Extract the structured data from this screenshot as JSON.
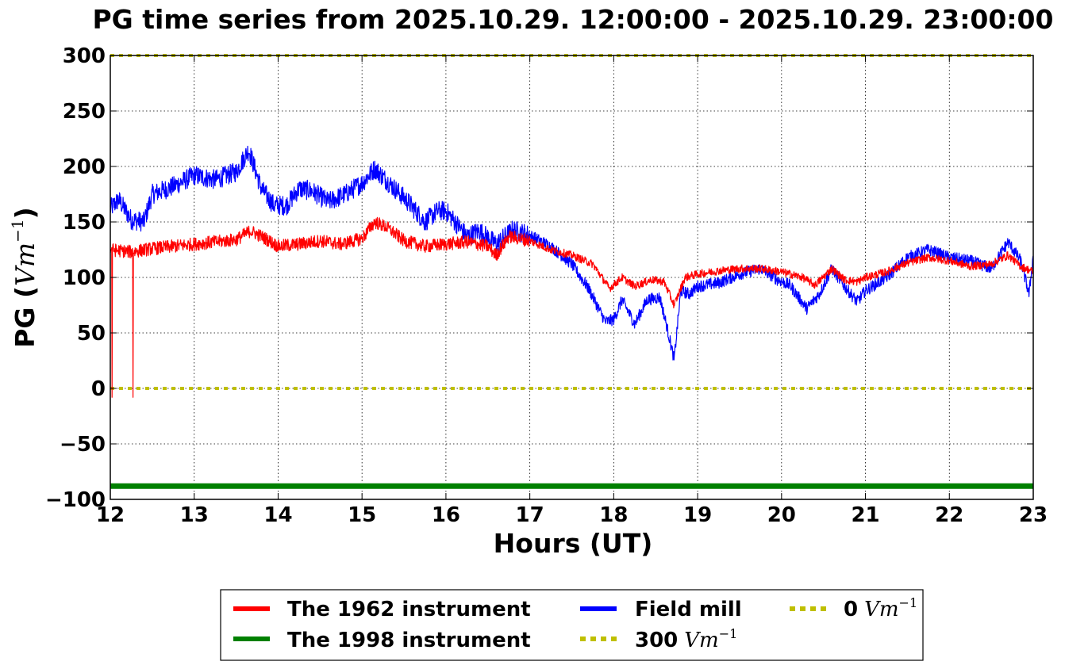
{
  "chart_data": {
    "type": "line",
    "title": "PG time series from 2025.10.29. 12:00:00 - 2025.10.29. 23:00:00",
    "xlabel": "Hours (UT)",
    "ylabel_text": "PG (",
    "ylabel_unit": "Vm",
    "ylabel_exp": "−1",
    "ylabel_close": ")",
    "xlim": [
      12,
      23
    ],
    "ylim": [
      -100,
      300
    ],
    "grid": true,
    "x_ticks": [
      12,
      13,
      14,
      15,
      16,
      17,
      18,
      19,
      20,
      21,
      22,
      23
    ],
    "y_ticks": [
      -100,
      -50,
      0,
      50,
      100,
      150,
      200,
      250,
      300
    ],
    "y_tick_labels": [
      "−100",
      "−50",
      "0",
      "50",
      "100",
      "150",
      "200",
      "250",
      "300"
    ],
    "legend_position": "below-center",
    "series": [
      {
        "name": "The 1962 instrument",
        "color": "#ff0000",
        "style": "solid",
        "x": [
          12.0,
          12.25,
          12.5,
          12.75,
          13.0,
          13.25,
          13.5,
          13.67,
          13.85,
          14.0,
          14.25,
          14.5,
          14.75,
          15.0,
          15.15,
          15.3,
          15.5,
          15.75,
          16.0,
          16.25,
          16.5,
          16.6,
          16.75,
          17.0,
          17.25,
          17.5,
          17.75,
          17.95,
          18.1,
          18.25,
          18.45,
          18.6,
          18.72,
          18.85,
          19.0,
          19.25,
          19.5,
          19.75,
          20.0,
          20.25,
          20.4,
          20.6,
          20.75,
          20.9,
          21.0,
          21.25,
          21.5,
          21.75,
          22.0,
          22.25,
          22.5,
          22.7,
          22.85,
          23.0
        ],
        "y": [
          125,
          123,
          126,
          128,
          130,
          132,
          134,
          142,
          135,
          128,
          130,
          133,
          130,
          135,
          150,
          145,
          133,
          128,
          130,
          132,
          128,
          120,
          137,
          133,
          125,
          120,
          112,
          90,
          100,
          92,
          98,
          96,
          75,
          100,
          103,
          106,
          108,
          108,
          105,
          100,
          93,
          108,
          98,
          96,
          100,
          105,
          113,
          118,
          115,
          110,
          112,
          120,
          110,
          105
        ]
      },
      {
        "name": "The 1998 instrument",
        "color": "#008000",
        "style": "solid-thick",
        "x": [
          12,
          23
        ],
        "y": [
          -88,
          -88
        ]
      },
      {
        "name": "Field mill",
        "color": "#0000ff",
        "style": "solid",
        "x": [
          12.0,
          12.1,
          12.25,
          12.4,
          12.5,
          12.75,
          13.0,
          13.25,
          13.5,
          13.65,
          13.8,
          13.95,
          14.1,
          14.25,
          14.4,
          14.6,
          14.8,
          15.0,
          15.15,
          15.35,
          15.55,
          15.75,
          15.9,
          16.0,
          16.25,
          16.4,
          16.6,
          16.8,
          17.0,
          17.25,
          17.5,
          17.7,
          17.9,
          18.0,
          18.1,
          18.25,
          18.4,
          18.55,
          18.62,
          18.72,
          18.8,
          18.9,
          19.0,
          19.25,
          19.5,
          19.75,
          19.95,
          20.1,
          20.3,
          20.45,
          20.6,
          20.75,
          20.9,
          21.0,
          21.25,
          21.5,
          21.75,
          22.0,
          22.25,
          22.5,
          22.7,
          22.85,
          22.95,
          23.0
        ],
        "y": [
          162,
          170,
          152,
          150,
          175,
          182,
          192,
          188,
          195,
          215,
          180,
          165,
          165,
          180,
          178,
          168,
          175,
          185,
          198,
          183,
          168,
          150,
          160,
          160,
          137,
          142,
          130,
          143,
          138,
          128,
          112,
          90,
          60,
          62,
          80,
          58,
          80,
          82,
          60,
          26,
          88,
          85,
          92,
          95,
          103,
          108,
          98,
          93,
          72,
          85,
          108,
          92,
          78,
          88,
          100,
          118,
          125,
          118,
          115,
          108,
          132,
          115,
          85,
          120
        ]
      },
      {
        "name": "300",
        "name_unit": "Vm",
        "name_exp": "−1",
        "color": "#bfbf00",
        "style": "dotted",
        "x": [
          12,
          23
        ],
        "y": [
          300,
          300
        ]
      },
      {
        "name": "0",
        "name_unit": "Vm",
        "name_exp": "−1",
        "color": "#bfbf00",
        "style": "dotted",
        "x": [
          12,
          23
        ],
        "y": [
          0,
          0
        ]
      }
    ],
    "annotations": [
      {
        "series": "The 1962 instrument",
        "type": "spike",
        "x": 12.02,
        "y": -8
      },
      {
        "series": "The 1962 instrument",
        "type": "spike",
        "x": 12.27,
        "y": -8
      }
    ]
  }
}
